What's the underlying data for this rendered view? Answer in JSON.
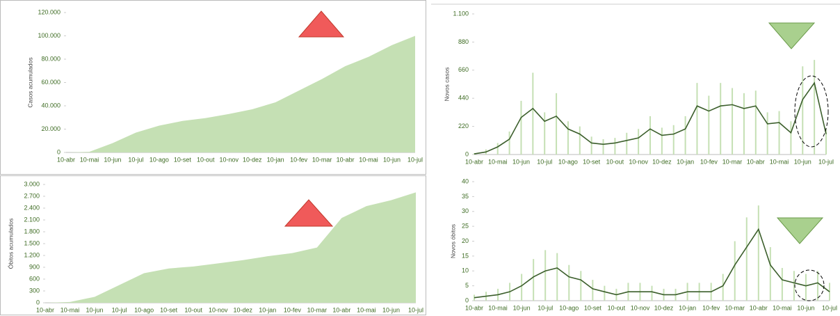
{
  "chart_data": [
    {
      "type": "area",
      "y_label": "Casos acumulados",
      "color": "#c5e0b4",
      "categories": [
        "10-abr",
        "10-mai",
        "10-jun",
        "10-jul",
        "10-ago",
        "10-set",
        "10-out",
        "10-nov",
        "10-dez",
        "10-jan",
        "10-fev",
        "10-mar",
        "10-abr",
        "10-mai",
        "10-jun",
        "10-jul"
      ],
      "values": [
        0,
        500,
        8000,
        17000,
        23000,
        27000,
        29500,
        33000,
        37000,
        43000,
        53000,
        63000,
        74000,
        82000,
        92000,
        100000
      ],
      "ylim": [
        0,
        120000
      ],
      "yticks": [
        0,
        {
          "value": 20000,
          "label": "20.000"
        },
        {
          "value": 40000,
          "label": "40.000"
        },
        {
          "value": 60000,
          "label": "60.000"
        },
        {
          "value": 80000,
          "label": "80.000"
        },
        {
          "value": 100000,
          "label": "100.000"
        },
        {
          "value": 120000,
          "label": "120.000"
        }
      ]
    },
    {
      "type": "bar_line",
      "y_label": "Novos casos",
      "categories": [
        "10-abr",
        null,
        "10-mai",
        null,
        "10-jun",
        null,
        "10-jul",
        null,
        "10-ago",
        null,
        "10-set",
        null,
        "10-out",
        null,
        "10-nov",
        null,
        "10-dez",
        null,
        "10-jan",
        null,
        "10-fev",
        null,
        "10-mar",
        null,
        "10-abr",
        null,
        "10-mai",
        null,
        "10-jun",
        null,
        "10-jul"
      ],
      "series": [
        {
          "color": "#c5e0b4",
          "values": [
            10,
            40,
            90,
            180,
            420,
            640,
            330,
            480,
            260,
            220,
            140,
            120,
            130,
            170,
            200,
            300,
            210,
            230,
            300,
            560,
            460,
            560,
            520,
            480,
            500,
            330,
            340,
            260,
            690,
            740,
            200
          ]
        },
        {
          "color": "#3b5e2b",
          "values": [
            5,
            20,
            60,
            120,
            290,
            360,
            260,
            300,
            200,
            160,
            90,
            80,
            90,
            110,
            130,
            200,
            150,
            160,
            200,
            380,
            340,
            380,
            390,
            360,
            380,
            240,
            250,
            170,
            430,
            560,
            160
          ]
        }
      ],
      "ylim": [
        0,
        1100
      ],
      "yticks": [
        0,
        220,
        440,
        660,
        880,
        {
          "value": 1100,
          "label": "1.100"
        }
      ]
    },
    {
      "type": "area",
      "y_label": "Óbitos acumulados",
      "color": "#c5e0b4",
      "categories": [
        "10-abr",
        "10-mai",
        "10-jun",
        "10-jul",
        "10-ago",
        "10-set",
        "10-out",
        "10-nov",
        "10-dez",
        "10-jan",
        "10-fev",
        "10-mar",
        "10-abr",
        "10-mai",
        "10-jun",
        "10-jul"
      ],
      "values": [
        0,
        20,
        150,
        450,
        750,
        870,
        920,
        1000,
        1080,
        1180,
        1260,
        1400,
        2150,
        2450,
        2600,
        2800
      ],
      "ylim": [
        0,
        3000
      ],
      "yticks": [
        0,
        300,
        600,
        900,
        {
          "value": 1200,
          "label": "1.200"
        },
        {
          "value": 1500,
          "label": "1.500"
        },
        {
          "value": 1800,
          "label": "1.800"
        },
        {
          "value": 2100,
          "label": "2.100"
        },
        {
          "value": 2400,
          "label": "2.400"
        },
        {
          "value": 2700,
          "label": "2.700"
        },
        {
          "value": 3000,
          "label": "3.000"
        }
      ]
    },
    {
      "type": "bar_line",
      "y_label": "Novos óbitos",
      "categories": [
        "10-abr",
        null,
        "10-mai",
        null,
        "10-jun",
        null,
        "10-jul",
        null,
        "10-ago",
        null,
        "10-set",
        null,
        "10-out",
        null,
        "10-nov",
        null,
        "10-dez",
        null,
        "10-jan",
        null,
        "10-fev",
        null,
        "10-mar",
        null,
        "10-abr",
        null,
        "10-mai",
        null,
        "10-jun",
        null,
        "10-jul"
      ],
      "series": [
        {
          "color": "#c5e0b4",
          "values": [
            2,
            3,
            4,
            6,
            9,
            14,
            17,
            16,
            12,
            10,
            7,
            5,
            4,
            6,
            6,
            5,
            4,
            4,
            6,
            6,
            6,
            9,
            20,
            28,
            32,
            18,
            11,
            10,
            9,
            10,
            6
          ]
        },
        {
          "color": "#3b5e2b",
          "values": [
            1,
            1.5,
            2,
            3,
            5,
            8,
            10,
            11,
            8,
            7,
            4,
            3,
            2,
            3,
            3,
            3,
            2,
            2,
            3,
            3,
            3,
            5,
            12,
            18,
            24,
            12,
            7,
            6,
            5,
            6,
            3
          ]
        }
      ],
      "ylim": [
        0,
        40
      ],
      "yticks": [
        0,
        5,
        10,
        15,
        20,
        25,
        30,
        35,
        40
      ]
    }
  ]
}
